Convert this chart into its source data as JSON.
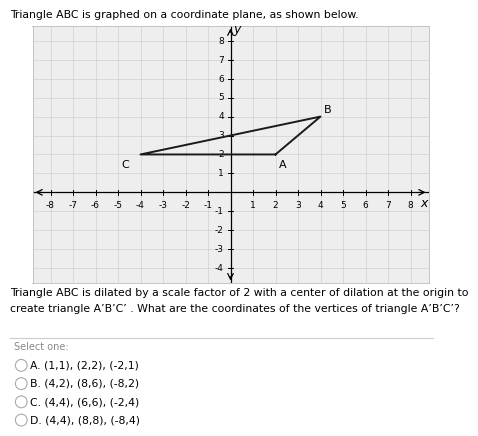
{
  "title_text": "Triangle ABC is graphed on a coordinate plane, as shown below.",
  "question_line1": "Triangle ABC is dilated by a scale factor of 2 with a center of dilation at the origin to",
  "question_line2": "create triangle A’B’C’ . What are the coordinates of the vertices of triangle A’B’C’?",
  "select_one_text": "Select one:",
  "choices": [
    "A. (1,1), (2,2), (-2,1)",
    "B. (4,2), (8,6), (-8,2)",
    "C. (4,4), (6,6), (-2,4)",
    "D. (4,4), (8,8), (-8,4)"
  ],
  "triangle_vertices": {
    "A": [
      2,
      2
    ],
    "B": [
      4,
      4
    ],
    "C": [
      -4,
      2
    ]
  },
  "vertex_label_offsets": {
    "A": [
      0.15,
      -0.25
    ],
    "B": [
      0.15,
      0.1
    ],
    "C": [
      -0.5,
      -0.25
    ]
  },
  "xlim": [
    -8.8,
    8.8
  ],
  "ylim": [
    -4.8,
    8.8
  ],
  "xtick_vals": [
    -8,
    -7,
    -6,
    -5,
    -4,
    -3,
    -2,
    -1,
    1,
    2,
    3,
    4,
    5,
    6,
    7,
    8
  ],
  "ytick_vals": [
    -4,
    -3,
    -2,
    -1,
    1,
    2,
    3,
    4,
    5,
    6,
    7,
    8
  ],
  "grid_color": "#d0d0d0",
  "triangle_color": "#1a1a1a",
  "bg_color": "white",
  "plot_bg": "#eeeeee",
  "border_color": "#bbbbbb",
  "tick_fontsize": 6.5,
  "label_fontsize": 8,
  "axis_letter_fontsize": 9
}
